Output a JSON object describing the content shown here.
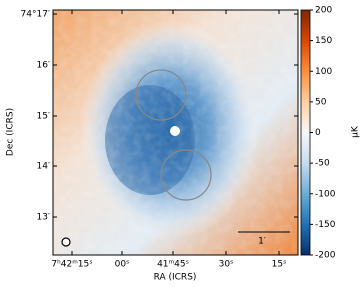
{
  "chart_data": {
    "type": "sky-map",
    "xlabel": "RA (ICRS)",
    "ylabel": "Dec (ICRS)",
    "xticks": [
      "7ʰ42ᵐ15ˢ",
      "00ˢ",
      "41ᵐ45ˢ",
      "30ˢ",
      "15ˢ"
    ],
    "yticks": [
      "74°17′",
      "16′",
      "15′",
      "14′",
      "13′"
    ],
    "scalebar_label": "1′",
    "colorbar": {
      "label": "μK",
      "lim": [
        -200,
        200
      ],
      "ticks": [
        -200,
        -150,
        -100,
        -50,
        0,
        50,
        100,
        150,
        200
      ],
      "colors": [
        "#08306b",
        "#2171b5",
        "#6baed6",
        "#c6dbef",
        "#f7f7f7",
        "#fdd0a2",
        "#fd8d3c",
        "#d94801",
        "#7f2704"
      ]
    }
  }
}
